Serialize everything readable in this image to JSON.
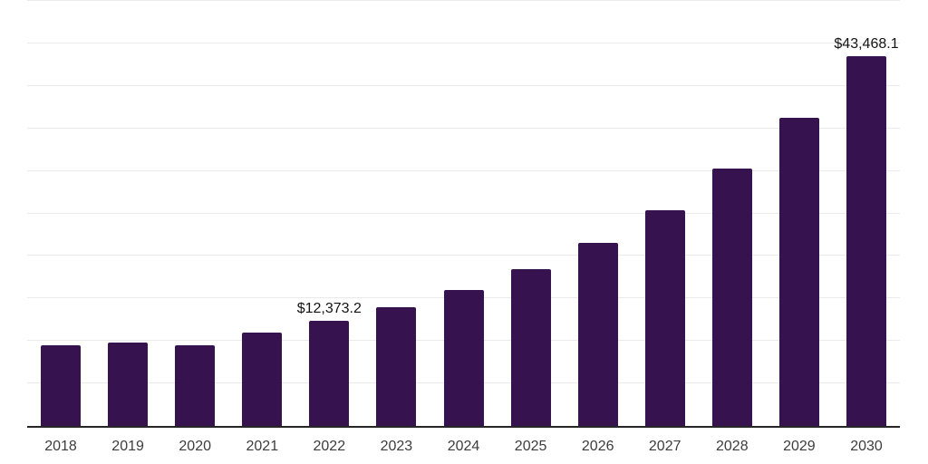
{
  "chart_data": {
    "type": "bar",
    "title": "",
    "xlabel": "",
    "ylabel": "",
    "categories": [
      "2018",
      "2019",
      "2020",
      "2021",
      "2022",
      "2023",
      "2024",
      "2025",
      "2026",
      "2027",
      "2028",
      "2029",
      "2030"
    ],
    "values": [
      9490,
      9780,
      9520,
      10960,
      12373.2,
      13940,
      16000,
      18460,
      21550,
      25390,
      30300,
      36270,
      43468.1
    ],
    "value_labels": [
      "",
      "",
      "",
      "",
      "$12,373.2",
      "",
      "",
      "",
      "",
      "",
      "",
      "",
      "$43,468.1"
    ],
    "ylim": [
      0,
      50000
    ],
    "gridline_interval": 5000,
    "grid": true,
    "legend": false,
    "y_tick_labels_visible": false,
    "colors": {
      "bar": "#36134f",
      "axis_line": "#262626",
      "gridline": "#e9e9e9",
      "x_label_text": "#3d3d3d",
      "value_label_text": "#141414",
      "background": "#ffffff"
    }
  }
}
